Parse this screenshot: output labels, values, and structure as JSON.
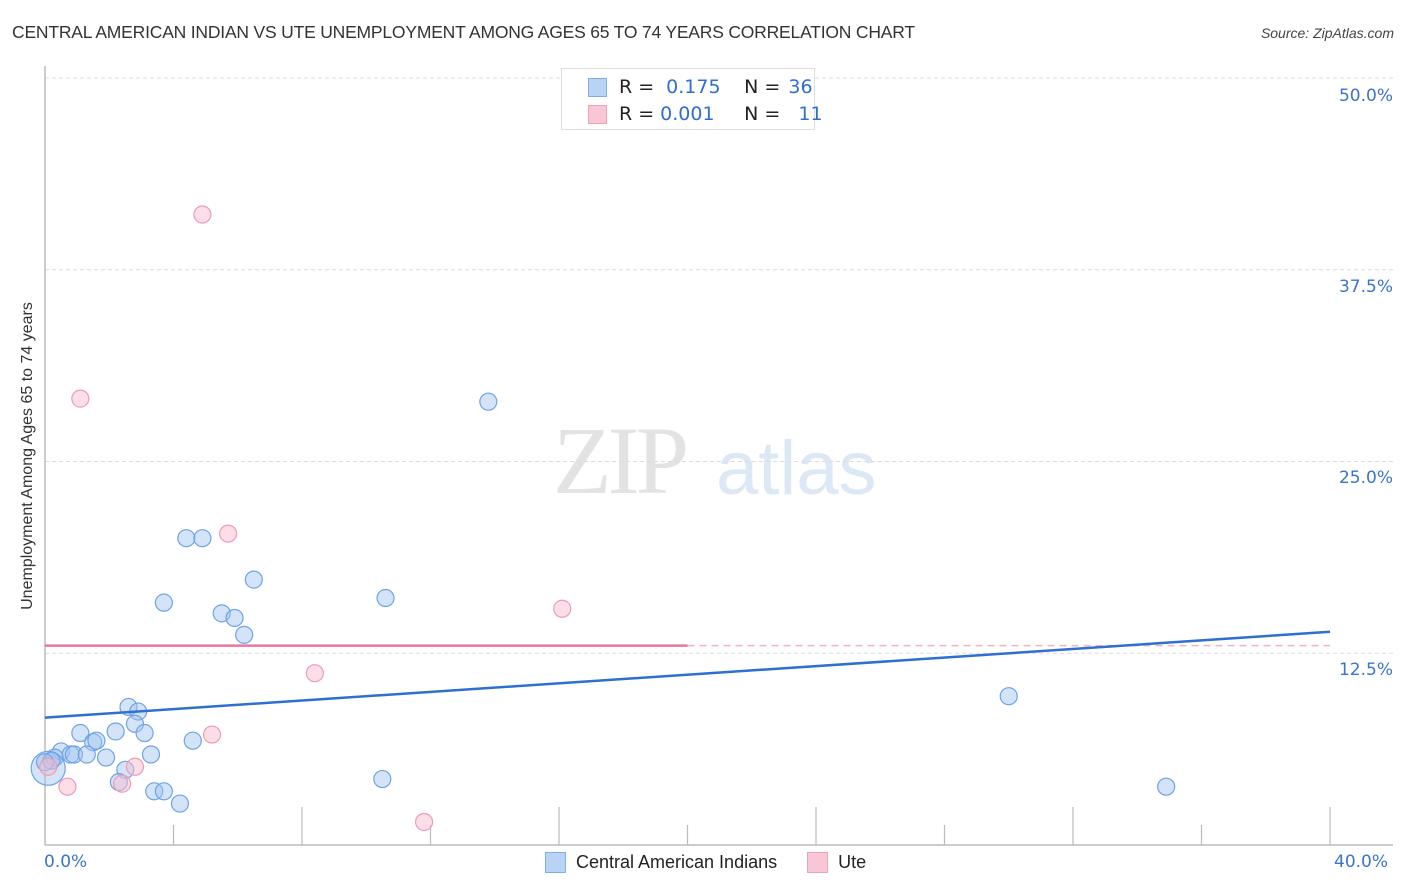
{
  "header": {
    "title": "CENTRAL AMERICAN INDIAN VS UTE UNEMPLOYMENT AMONG AGES 65 TO 74 YEARS CORRELATION CHART",
    "source": "Source: ZipAtlas.com"
  },
  "watermark": {
    "zip": "ZIP",
    "atlas": "atlas"
  },
  "legend": {
    "rows": [
      {
        "r_label": "R =",
        "r_value": "0.175",
        "n_label": "N =",
        "n_value": "36",
        "color": "#b8d3f5"
      },
      {
        "r_label": "R =",
        "r_value": "0.001",
        "n_label": "N =",
        "n_value": "11",
        "color": "#f9c6d5"
      }
    ],
    "bottom": [
      "Central American Indians",
      "Ute"
    ]
  },
  "axes": {
    "ylabel": "Unemployment Among Ages 65 to 74 years",
    "yticks": [
      "50.0%",
      "37.5%",
      "25.0%",
      "12.5%"
    ],
    "xticks": [
      "0.0%",
      "40.0%"
    ]
  },
  "chart_data": {
    "type": "scatter",
    "title": "CENTRAL AMERICAN INDIAN VS UTE UNEMPLOYMENT AMONG AGES 65 TO 74 YEARS CORRELATION CHART",
    "xlabel": "",
    "ylabel": "Unemployment Among Ages 65 to 74 years",
    "xlim": [
      0,
      40
    ],
    "ylim": [
      0,
      50
    ],
    "x_tick_labels": [
      "0.0%",
      "40.0%"
    ],
    "y_tick_labels": [
      "12.5%",
      "25.0%",
      "37.5%",
      "50.0%"
    ],
    "grid": "horizontal dashed",
    "legend_position": "top-center",
    "series": [
      {
        "name": "Central American Indians",
        "color": "#6fa3e6",
        "R": 0.175,
        "N": 36,
        "trend": {
          "x": [
            0,
            40
          ],
          "y": [
            8.3,
            13.9
          ]
        },
        "points": [
          [
            13.8,
            28.9
          ],
          [
            4.4,
            20.0
          ],
          [
            4.9,
            20.0
          ],
          [
            6.5,
            17.3
          ],
          [
            3.7,
            15.8
          ],
          [
            10.6,
            16.1
          ],
          [
            5.5,
            15.1
          ],
          [
            5.9,
            14.8
          ],
          [
            6.2,
            13.7
          ],
          [
            30.0,
            9.7
          ],
          [
            2.6,
            9.0
          ],
          [
            2.9,
            8.7
          ],
          [
            2.8,
            7.9
          ],
          [
            1.1,
            7.3
          ],
          [
            2.2,
            7.4
          ],
          [
            3.1,
            7.3
          ],
          [
            1.5,
            6.7
          ],
          [
            1.6,
            6.8
          ],
          [
            4.6,
            6.8
          ],
          [
            3.3,
            5.9
          ],
          [
            0.5,
            6.1
          ],
          [
            0.8,
            5.9
          ],
          [
            0.9,
            5.9
          ],
          [
            1.3,
            5.9
          ],
          [
            0.3,
            5.7
          ],
          [
            1.9,
            5.7
          ],
          [
            2.5,
            4.9
          ],
          [
            2.3,
            4.1
          ],
          [
            10.5,
            4.3
          ],
          [
            3.4,
            3.5
          ],
          [
            3.7,
            3.5
          ],
          [
            4.2,
            2.7
          ],
          [
            34.9,
            3.8
          ],
          [
            0.1,
            5.0
          ],
          [
            0.2,
            5.5
          ],
          [
            0.0,
            5.4
          ]
        ]
      },
      {
        "name": "Ute",
        "color": "#f08fac",
        "R": 0.001,
        "N": 11,
        "trend": {
          "x": [
            0,
            40
          ],
          "y": [
            13.0,
            13.0
          ]
        },
        "points": [
          [
            4.9,
            41.1
          ],
          [
            1.1,
            29.1
          ],
          [
            5.7,
            20.3
          ],
          [
            16.1,
            15.4
          ],
          [
            8.4,
            11.2
          ],
          [
            5.2,
            7.2
          ],
          [
            2.8,
            5.1
          ],
          [
            2.4,
            4.0
          ],
          [
            0.7,
            3.8
          ],
          [
            11.8,
            1.5
          ],
          [
            0.1,
            5.1
          ]
        ]
      }
    ]
  }
}
